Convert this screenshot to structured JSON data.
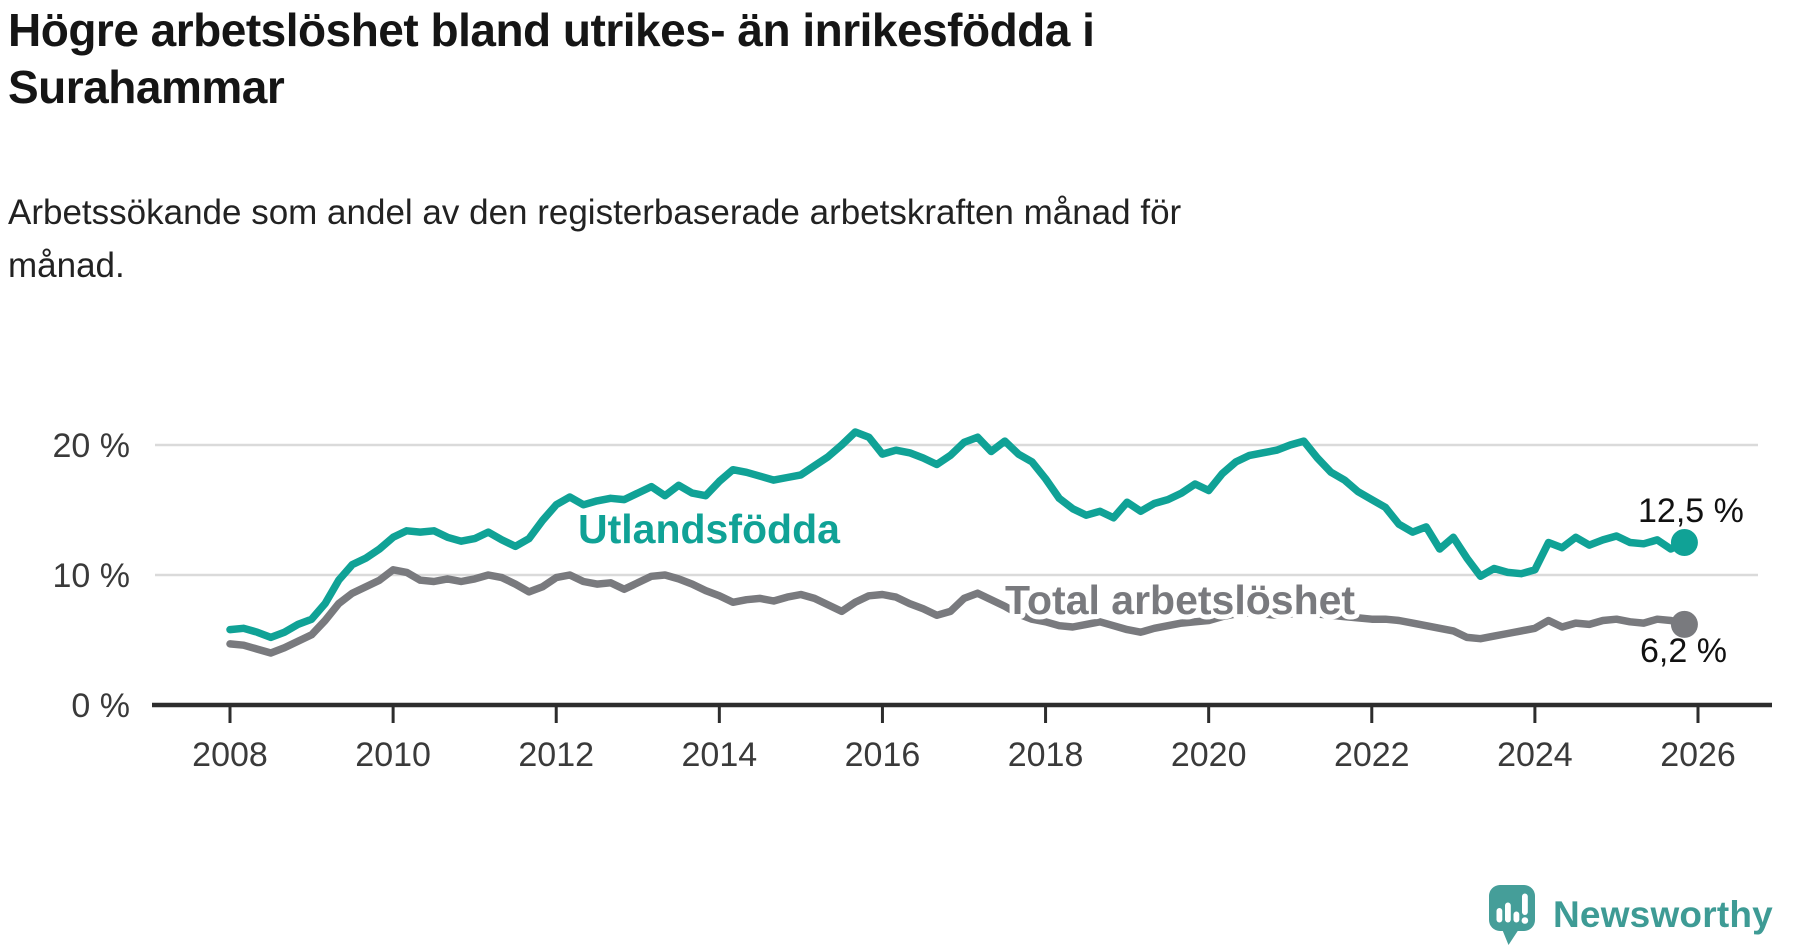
{
  "header": {
    "title": "Högre arbetslöshet bland utrikes- än inrikesfödda i Surahammar",
    "title_lines": [
      "Högre arbetslöshet bland utrikes- än inrikesfödda i",
      "Surahammar"
    ],
    "subtitle": "Arbetssökande som andel av den registerbaserade arbetskraften månad för månad.",
    "subtitle_lines": [
      "Arbetssökande som andel av den registerbaserade arbetskraften månad för",
      "månad."
    ]
  },
  "chart_data": {
    "type": "line",
    "title": "Högre arbetslöshet bland utrikes- än inrikesfödda i Surahammar",
    "subtitle": "Arbetssökande som andel av den registerbaserade arbetskraften månad för månad.",
    "grid": true,
    "legend_position": "inline-labels-on-lines",
    "x_axis": {
      "ticks": [
        2008,
        2010,
        2012,
        2014,
        2016,
        2018,
        2020,
        2022,
        2024,
        2026
      ],
      "range": [
        2007.1,
        2026.9
      ]
    },
    "y_axis": {
      "unit": "%",
      "ticks": [
        {
          "value": 0,
          "label": "0 %"
        },
        {
          "value": 10,
          "label": "10 %"
        },
        {
          "value": 20,
          "label": "20 %"
        }
      ],
      "gridline_values": [
        10,
        20
      ],
      "range": [
        0,
        22.5
      ]
    },
    "series": [
      {
        "id": "utlandsfodda",
        "name": "Utlandsfödda",
        "color": "#10a296",
        "end_label": "12,5 %",
        "end_value": 12.5,
        "x_start": 2008,
        "x_step_years": 0.1666667,
        "values": [
          5.8,
          5.9,
          5.6,
          5.2,
          5.6,
          6.2,
          6.6,
          7.8,
          9.6,
          10.8,
          11.3,
          12.0,
          12.9,
          13.4,
          13.3,
          13.4,
          12.9,
          12.6,
          12.8,
          13.3,
          12.7,
          12.2,
          12.8,
          14.2,
          15.4,
          16.0,
          15.4,
          15.7,
          15.9,
          15.8,
          16.3,
          16.8,
          16.1,
          16.9,
          16.3,
          16.1,
          17.2,
          18.1,
          17.9,
          17.6,
          17.3,
          17.5,
          17.7,
          18.4,
          19.1,
          20.0,
          21.0,
          20.6,
          19.3,
          19.6,
          19.4,
          19.0,
          18.5,
          19.2,
          20.2,
          20.6,
          19.5,
          20.3,
          19.3,
          18.7,
          17.4,
          15.9,
          15.1,
          14.6,
          14.9,
          14.4,
          15.6,
          14.9,
          15.5,
          15.8,
          16.3,
          17.0,
          16.5,
          17.8,
          18.7,
          19.2,
          19.4,
          19.6,
          20.0,
          20.3,
          19.0,
          17.9,
          17.3,
          16.4,
          15.8,
          15.2,
          13.9,
          13.3,
          13.7,
          12.0,
          12.9,
          11.3,
          9.9,
          10.5,
          10.2,
          10.1,
          10.4,
          12.5,
          12.1,
          12.9,
          12.3,
          12.7,
          13.0,
          12.5,
          12.4,
          12.7,
          12.0,
          12.5
        ]
      },
      {
        "id": "total-arbetsloshet",
        "name": "Total arbetslöshet",
        "color": "#797a7e",
        "end_label": "6,2 %",
        "end_value": 6.2,
        "x_start": 2008,
        "x_step_years": 0.1666667,
        "values": [
          4.7,
          4.6,
          4.3,
          4.0,
          4.4,
          4.9,
          5.4,
          6.5,
          7.8,
          8.6,
          9.1,
          9.6,
          10.4,
          10.2,
          9.6,
          9.5,
          9.7,
          9.5,
          9.7,
          10.0,
          9.8,
          9.3,
          8.7,
          9.1,
          9.8,
          10.0,
          9.5,
          9.3,
          9.4,
          8.9,
          9.4,
          9.9,
          10.0,
          9.7,
          9.3,
          8.8,
          8.4,
          7.9,
          8.1,
          8.2,
          8.0,
          8.3,
          8.5,
          8.2,
          7.7,
          7.2,
          7.9,
          8.4,
          8.5,
          8.3,
          7.8,
          7.4,
          6.9,
          7.2,
          8.2,
          8.6,
          8.1,
          7.6,
          7.0,
          6.6,
          6.4,
          6.1,
          6.0,
          6.2,
          6.4,
          6.1,
          5.8,
          5.6,
          5.9,
          6.1,
          6.3,
          6.4,
          6.5,
          6.8,
          7.0,
          7.1,
          7.0,
          6.9,
          7.0,
          7.1,
          7.0,
          6.9,
          6.8,
          6.7,
          6.6,
          6.6,
          6.5,
          6.3,
          6.1,
          5.9,
          5.7,
          5.2,
          5.1,
          5.3,
          5.5,
          5.7,
          5.9,
          6.5,
          6.0,
          6.3,
          6.2,
          6.5,
          6.6,
          6.4,
          6.3,
          6.6,
          6.5,
          6.2
        ]
      }
    ]
  },
  "branding": {
    "logo_text": "Newsworthy",
    "logo_color": "#3e9b95",
    "logo_icon": "newsworthy-speech-bubble-bar-chart-icon"
  }
}
